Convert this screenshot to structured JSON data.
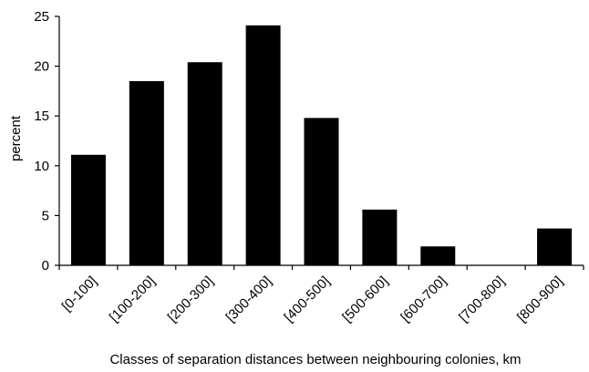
{
  "chart_data": {
    "type": "bar",
    "title": "",
    "xlabel": "Classes of separation distances between neighbouring colonies, km",
    "ylabel": "percent",
    "categories": [
      "[0-100]",
      "[100-200]",
      "[200-300]",
      "[300-400]",
      "[400-500]",
      "[500-600]",
      "[600-700]",
      "[700-800]",
      "[800-900]"
    ],
    "values": [
      11.1,
      18.5,
      20.4,
      24.1,
      14.8,
      5.6,
      1.9,
      0,
      3.7
    ],
    "ylim": [
      0,
      25
    ],
    "yticks": [
      0,
      5,
      10,
      15,
      20,
      25
    ],
    "grid": false,
    "legend": "none",
    "bar_color": "#000000"
  }
}
